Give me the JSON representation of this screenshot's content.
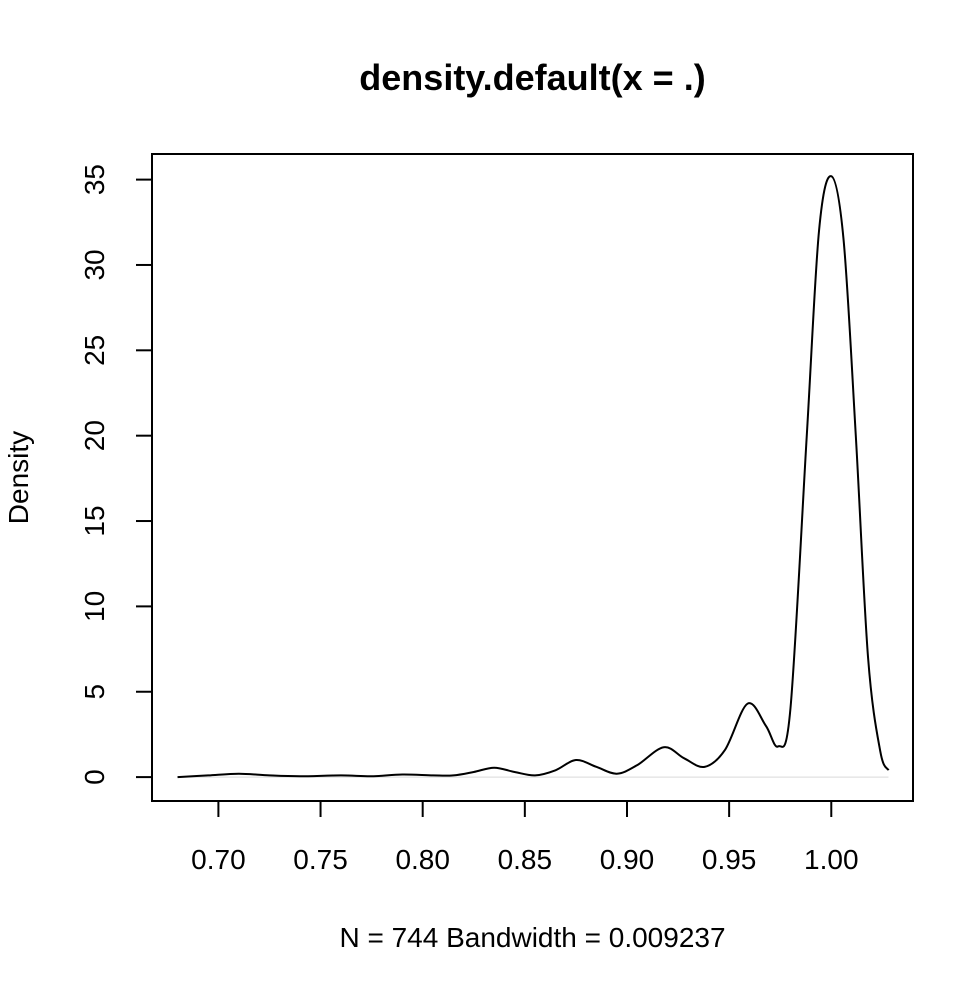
{
  "chart_data": {
    "type": "line",
    "title": "density.default(x = .)",
    "xlabel": "N = 744   Bandwidth = 0.009237",
    "ylabel": "Density",
    "xlim": [
      0.6675,
      1.04
    ],
    "ylim": [
      -1.4,
      36.5
    ],
    "x_ticks": [
      0.7,
      0.75,
      0.8,
      0.85,
      0.9,
      0.95,
      1.0
    ],
    "x_tick_labels": [
      "0.70",
      "0.75",
      "0.80",
      "0.85",
      "0.90",
      "0.95",
      "1.00"
    ],
    "y_ticks": [
      0,
      5,
      10,
      15,
      20,
      25,
      30,
      35
    ],
    "y_tick_labels": [
      "0",
      "5",
      "10",
      "15",
      "20",
      "25",
      "30",
      "35"
    ],
    "baseline": 0,
    "series": [
      {
        "name": "density",
        "x": [
          0.68,
          0.695,
          0.71,
          0.725,
          0.74,
          0.76,
          0.775,
          0.79,
          0.805,
          0.815,
          0.825,
          0.835,
          0.845,
          0.855,
          0.865,
          0.875,
          0.885,
          0.895,
          0.905,
          0.918,
          0.928,
          0.938,
          0.948,
          0.959,
          0.968,
          0.974,
          0.98,
          0.988,
          0.994,
          1.0,
          1.006,
          1.012,
          1.018,
          1.024,
          1.028
        ],
        "y": [
          0.0,
          0.1,
          0.2,
          0.1,
          0.05,
          0.1,
          0.05,
          0.15,
          0.1,
          0.1,
          0.3,
          0.55,
          0.3,
          0.1,
          0.4,
          1.0,
          0.6,
          0.2,
          0.7,
          1.75,
          1.1,
          0.6,
          1.6,
          4.3,
          3.0,
          1.8,
          4.0,
          20.0,
          32.0,
          35.2,
          31.5,
          20.0,
          7.0,
          1.5,
          0.4
        ]
      }
    ]
  }
}
